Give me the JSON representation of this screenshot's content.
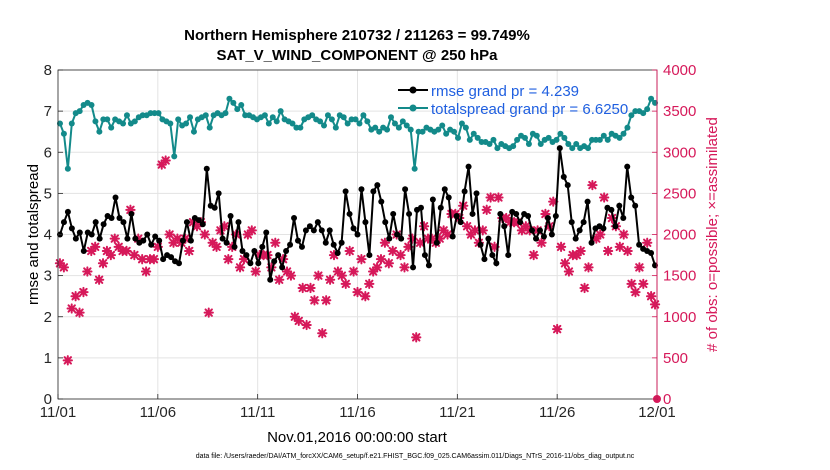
{
  "chart_data": {
    "type": "line",
    "title": "Northern Hemisphere 210732 / 211263 = 99.749%",
    "subtitle": "SAT_V_WIND_COMPONENT @ 250 hPa",
    "xlabel": "Nov.01,2016 00:00:00 start",
    "ylabel_left": "rmse and totalspread",
    "ylabel_right": "# of obs: o=possible; ×=assimilated",
    "footnote": "data file: /Users/raeder/DAI/ATM_forcXX/CAM6_setup/f.e21.FHIST_BGC.f09_025.CAM6assim.011/Diags_NTrS_2016-11/obs_diag_output.nc",
    "xlim": [
      0,
      30
    ],
    "ylim_left": [
      0,
      8
    ],
    "ylim_right": [
      0,
      4000
    ],
    "x_ticks": [
      {
        "value": 0,
        "label": "11/01"
      },
      {
        "value": 5,
        "label": "11/06"
      },
      {
        "value": 10,
        "label": "11/11"
      },
      {
        "value": 15,
        "label": "11/16"
      },
      {
        "value": 20,
        "label": "11/21"
      },
      {
        "value": 25,
        "label": "11/26"
      },
      {
        "value": 30,
        "label": "12/01"
      }
    ],
    "y_ticks_left": [
      "0",
      "1",
      "2",
      "3",
      "4",
      "5",
      "6",
      "7",
      "8"
    ],
    "y_ticks_right": [
      "0",
      "500",
      "1000",
      "1500",
      "2000",
      "2500",
      "3000",
      "3500",
      "4000"
    ],
    "grid": true,
    "legend_position": "top-right",
    "colors": {
      "rmse": "#000000",
      "totalspread": "#138a8a",
      "obs": "#d6195a",
      "right_axis": "#d6195a",
      "legend_text": "#1f5fe0"
    },
    "series": [
      {
        "name": "rmse grand pr = 4.239",
        "axis": "left",
        "values": [
          4.0,
          4.3,
          4.55,
          4.15,
          3.9,
          4.05,
          3.6,
          4.05,
          4.0,
          4.3,
          3.9,
          4.25,
          4.45,
          4.4,
          4.9,
          4.4,
          4.3,
          3.9,
          4.5,
          3.9,
          3.8,
          3.85,
          4.0,
          3.75,
          3.95,
          3.85,
          3.4,
          3.5,
          3.45,
          3.35,
          3.3,
          3.85,
          4.3,
          3.85,
          4.4,
          4.35,
          4.25,
          5.6,
          4.7,
          4.65,
          5.0,
          3.9,
          3.8,
          4.45,
          3.7,
          4.3,
          3.6,
          3.5,
          3.3,
          3.6,
          3.3,
          3.7,
          4.05,
          2.9,
          3.35,
          3.5,
          3.2,
          3.6,
          3.75,
          4.4,
          3.85,
          3.7,
          4.1,
          4.2,
          4.1,
          4.3,
          4.1,
          3.8,
          4.1,
          3.75,
          3.55,
          3.8,
          5.05,
          4.5,
          4.15,
          4.0,
          5.1,
          4.3,
          3.5,
          5.05,
          5.2,
          4.8,
          4.3,
          3.9,
          4.5,
          4.0,
          3.9,
          5.1,
          4.5,
          3.2,
          4.6,
          4.65,
          3.5,
          3.25,
          4.85,
          3.8,
          4.65,
          5.1,
          4.9,
          3.95,
          4.45,
          4.3,
          5.05,
          5.65,
          4.5,
          5.0,
          3.75,
          3.4,
          3.9,
          3.5,
          3.3,
          4.5,
          4.2,
          3.5,
          4.55,
          4.5,
          4.3,
          4.5,
          4.45,
          4.1,
          3.9,
          4.1,
          3.95,
          4.4,
          4.0,
          4.45,
          6.1,
          5.4,
          5.2,
          4.3,
          3.9,
          4.1,
          4.3,
          4.8,
          3.8,
          4.15,
          4.2,
          4.15,
          4.65,
          4.6,
          4.2,
          4.7,
          4.4,
          5.65,
          4.9,
          4.7,
          3.75,
          3.65,
          3.6,
          3.55,
          3.25
        ]
      },
      {
        "name": "totalspread grand pr = 6.6250",
        "axis": "left",
        "values": [
          6.7,
          6.45,
          5.6,
          6.7,
          6.95,
          7.0,
          7.15,
          7.2,
          7.15,
          6.75,
          6.5,
          6.8,
          6.8,
          6.6,
          6.8,
          6.75,
          6.7,
          6.9,
          6.7,
          6.75,
          6.85,
          6.9,
          6.9,
          6.95,
          6.95,
          6.95,
          6.8,
          6.75,
          6.7,
          5.9,
          6.8,
          6.65,
          6.7,
          6.85,
          6.5,
          6.8,
          6.85,
          6.9,
          6.6,
          6.9,
          6.95,
          6.9,
          6.95,
          7.3,
          7.2,
          7.05,
          7.15,
          6.9,
          6.9,
          6.85,
          6.8,
          6.85,
          6.9,
          6.7,
          6.85,
          6.75,
          7.0,
          6.8,
          6.75,
          6.7,
          6.6,
          6.6,
          6.8,
          6.85,
          6.9,
          6.8,
          6.75,
          6.65,
          6.9,
          6.8,
          6.6,
          6.9,
          6.85,
          6.7,
          6.8,
          6.8,
          6.7,
          6.9,
          6.75,
          6.55,
          6.6,
          6.5,
          6.6,
          6.55,
          6.85,
          6.7,
          6.6,
          6.75,
          6.65,
          6.55,
          5.6,
          6.5,
          6.5,
          6.6,
          6.55,
          6.5,
          6.55,
          6.65,
          6.45,
          6.55,
          6.5,
          6.35,
          6.7,
          6.6,
          6.3,
          6.45,
          6.35,
          6.25,
          6.25,
          6.2,
          6.3,
          6.1,
          6.2,
          6.15,
          6.1,
          6.15,
          6.3,
          6.4,
          6.35,
          6.2,
          6.45,
          6.4,
          6.2,
          6.3,
          6.35,
          6.25,
          6.3,
          6.45,
          6.35,
          6.2,
          6.1,
          6.2,
          6.1,
          6.15,
          6.1,
          6.3,
          6.3,
          6.3,
          6.4,
          6.3,
          6.45,
          6.4,
          6.35,
          6.45,
          6.6,
          6.9,
          7.0,
          7.0,
          6.95,
          7.05,
          7.3,
          7.2
        ]
      },
      {
        "name": "assimilated",
        "axis": "right",
        "values": [
          1650,
          1600,
          470,
          1100,
          1250,
          1050,
          1300,
          1550,
          1800,
          1850,
          1450,
          1650,
          1800,
          1750,
          1950,
          1850,
          1800,
          1800,
          2300,
          1750,
          1950,
          1700,
          1550,
          1700,
          1700,
          1850,
          2850,
          2900,
          2000,
          1900,
          1950,
          1900,
          1950,
          1800,
          2150,
          2100,
          2150,
          2000,
          1050,
          1900,
          1850,
          2050,
          2100,
          1700,
          1850,
          2000,
          1600,
          1700,
          2000,
          2050,
          1550,
          1750,
          1750,
          1750,
          1600,
          1900,
          1450,
          1700,
          1550,
          1500,
          1000,
          950,
          1350,
          900,
          1350,
          1200,
          1500,
          800,
          1200,
          1450,
          1750,
          1550,
          1500,
          1400,
          1800,
          1550,
          1300,
          1700,
          1250,
          1400,
          1550,
          1600,
          1700,
          1900,
          1650,
          1800,
          2000,
          1750,
          1600,
          1850,
          1950,
          750,
          1900,
          2100,
          1950,
          1950,
          1900,
          1950,
          2050,
          2000,
          2250,
          2250,
          2200,
          2350,
          2100,
          2000,
          2050,
          1900,
          2050,
          2300,
          2450,
          1850,
          2450,
          2200,
          2200,
          2150,
          2150,
          2150,
          2050,
          2100,
          2050,
          1750,
          2050,
          1900,
          2250,
          2100,
          2400,
          850,
          1850,
          1650,
          1550,
          1750,
          1750,
          1800,
          1350,
          1600,
          2600,
          1950,
          2000,
          2450,
          1800,
          2200,
          2100,
          1850,
          2000,
          1800,
          1400,
          1300,
          1600,
          1400,
          1900,
          1250,
          1150
        ]
      }
    ]
  }
}
